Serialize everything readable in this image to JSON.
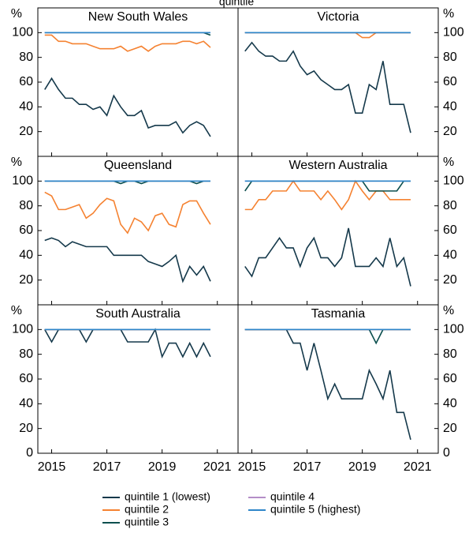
{
  "chart_data": {
    "type": "line",
    "title": "quintile",
    "ylabel": "%",
    "x": [
      2014.75,
      2015,
      2015.25,
      2015.5,
      2015.75,
      2016,
      2016.25,
      2016.5,
      2016.75,
      2017,
      2017.25,
      2017.5,
      2017.75,
      2018,
      2018.25,
      2018.5,
      2018.75,
      2019,
      2019.25,
      2019.5,
      2019.75,
      2020,
      2020.25,
      2020.5,
      2020.75
    ],
    "xlim": [
      2014.5,
      2021.75
    ],
    "xticks": [
      2015,
      2017,
      2019,
      2021
    ],
    "ylim": [
      0,
      120
    ],
    "series": [
      {
        "name": "quintile 1 (lowest)",
        "color": "#15394b"
      },
      {
        "name": "quintile 2",
        "color": "#f58231"
      },
      {
        "name": "quintile 3",
        "color": "#0b4f4e"
      },
      {
        "name": "quintile 4",
        "color": "#b48ec7"
      },
      {
        "name": "quintile 5 (highest)",
        "color": "#2e86c9"
      }
    ],
    "panels": [
      {
        "title": "New South Wales",
        "yticks": [
          20,
          40,
          60,
          80,
          100
        ],
        "series": [
          {
            "values": [
              54,
              63,
              54,
              47,
              47,
              42,
              42,
              38,
              40,
              33,
              49,
              40,
              33,
              33,
              37,
              23,
              25,
              25,
              25,
              28,
              19,
              25,
              28,
              25,
              16
            ]
          },
          {
            "values": [
              98,
              98,
              93,
              93,
              91,
              91,
              91,
              89,
              87,
              87,
              87,
              89,
              85,
              87,
              89,
              85,
              89,
              91,
              91,
              91,
              93,
              93,
              91,
              93,
              88
            ]
          },
          {
            "values": [
              100,
              100,
              100,
              100,
              100,
              100,
              100,
              100,
              100,
              100,
              100,
              100,
              100,
              100,
              100,
              100,
              100,
              100,
              100,
              100,
              100,
              100,
              100,
              100,
              98
            ]
          },
          {
            "values": [
              100,
              100,
              100,
              100,
              100,
              100,
              100,
              100,
              100,
              100,
              100,
              100,
              100,
              100,
              100,
              100,
              100,
              100,
              100,
              100,
              100,
              100,
              100,
              100,
              100
            ]
          },
          {
            "values": [
              100,
              100,
              100,
              100,
              100,
              100,
              100,
              100,
              100,
              100,
              100,
              100,
              100,
              100,
              100,
              100,
              100,
              100,
              100,
              100,
              100,
              100,
              100,
              100,
              100
            ]
          }
        ]
      },
      {
        "title": "Victoria",
        "yticks": [
          20,
          40,
          60,
          80,
          100
        ],
        "series": [
          {
            "values": [
              85,
              92,
              85,
              81,
              81,
              77,
              77,
              85,
              73,
              66,
              69,
              62,
              58,
              54,
              54,
              58,
              35,
              35,
              58,
              54,
              77,
              42,
              42,
              42,
              19
            ]
          },
          {
            "values": [
              100,
              100,
              100,
              100,
              100,
              100,
              100,
              100,
              100,
              100,
              100,
              100,
              100,
              100,
              100,
              100,
              100,
              96,
              96,
              100,
              100,
              100,
              100,
              100,
              100
            ]
          },
          {
            "values": [
              100,
              100,
              100,
              100,
              100,
              100,
              100,
              100,
              100,
              100,
              100,
              100,
              100,
              100,
              100,
              100,
              100,
              100,
              100,
              100,
              100,
              100,
              100,
              100,
              100
            ]
          },
          {
            "values": [
              100,
              100,
              100,
              100,
              100,
              100,
              100,
              100,
              100,
              100,
              100,
              100,
              100,
              100,
              100,
              100,
              100,
              100,
              100,
              100,
              100,
              100,
              100,
              100,
              100
            ]
          },
          {
            "values": [
              100,
              100,
              100,
              100,
              100,
              100,
              100,
              100,
              100,
              100,
              100,
              100,
              100,
              100,
              100,
              100,
              100,
              100,
              100,
              100,
              100,
              100,
              100,
              100,
              100
            ]
          }
        ]
      },
      {
        "title": "Queensland",
        "yticks": [
          20,
          40,
          60,
          80,
          100
        ],
        "series": [
          {
            "values": [
              52,
              54,
              52,
              47,
              51,
              49,
              47,
              47,
              47,
              47,
              40,
              40,
              40,
              40,
              40,
              35,
              33,
              31,
              35,
              40,
              19,
              31,
              24,
              31,
              19
            ]
          },
          {
            "values": [
              91,
              88,
              77,
              77,
              79,
              81,
              70,
              74,
              81,
              86,
              84,
              65,
              58,
              70,
              67,
              60,
              72,
              74,
              65,
              63,
              81,
              84,
              84,
              74,
              65
            ]
          },
          {
            "values": [
              100,
              100,
              100,
              100,
              100,
              100,
              100,
              100,
              100,
              100,
              100,
              98,
              100,
              100,
              98,
              100,
              100,
              100,
              100,
              100,
              100,
              100,
              98,
              100,
              100
            ]
          },
          {
            "values": [
              100,
              100,
              100,
              100,
              100,
              100,
              100,
              100,
              100,
              100,
              100,
              100,
              100,
              100,
              100,
              100,
              100,
              100,
              100,
              100,
              100,
              100,
              100,
              100,
              100
            ]
          },
          {
            "values": [
              100,
              100,
              100,
              100,
              100,
              100,
              100,
              100,
              100,
              100,
              100,
              100,
              100,
              100,
              100,
              100,
              100,
              100,
              100,
              100,
              100,
              100,
              100,
              100,
              100
            ]
          }
        ]
      },
      {
        "title": "Western Australia",
        "yticks": [
          20,
          40,
          60,
          80,
          100
        ],
        "series": [
          {
            "values": [
              31,
              23,
              38,
              38,
              46,
              54,
              46,
              46,
              31,
              46,
              54,
              38,
              38,
              31,
              38,
              62,
              31,
              31,
              31,
              38,
              31,
              54,
              31,
              38,
              15
            ]
          },
          {
            "values": [
              77,
              77,
              85,
              85,
              92,
              92,
              92,
              100,
              92,
              92,
              92,
              85,
              92,
              85,
              77,
              85,
              100,
              92,
              85,
              92,
              92,
              85,
              85,
              85,
              85
            ]
          },
          {
            "values": [
              92,
              100,
              100,
              100,
              100,
              100,
              100,
              100,
              100,
              100,
              100,
              100,
              100,
              100,
              100,
              100,
              100,
              100,
              92,
              92,
              92,
              92,
              92,
              100,
              100
            ]
          },
          {
            "values": [
              100,
              100,
              100,
              100,
              100,
              100,
              100,
              100,
              100,
              100,
              100,
              100,
              100,
              100,
              100,
              100,
              100,
              100,
              100,
              100,
              100,
              100,
              100,
              100,
              100
            ]
          },
          {
            "values": [
              100,
              100,
              100,
              100,
              100,
              100,
              100,
              100,
              100,
              100,
              100,
              100,
              100,
              100,
              100,
              100,
              100,
              100,
              100,
              100,
              100,
              100,
              100,
              100,
              100
            ]
          }
        ]
      },
      {
        "title": "South Australia",
        "yticks": [
          0,
          20,
          40,
          60,
          80,
          100
        ],
        "series": [
          {
            "values": [
              100,
              90,
              100,
              100,
              100,
              100,
              90,
              100,
              100,
              100,
              100,
              100,
              90,
              90,
              90,
              90,
              100,
              78,
              89,
              89,
              78,
              89,
              78,
              89,
              78
            ]
          },
          {
            "values": [
              100,
              100,
              100,
              100,
              100,
              100,
              100,
              100,
              100,
              100,
              100,
              100,
              100,
              100,
              100,
              100,
              100,
              100,
              100,
              100,
              100,
              100,
              100,
              100,
              100
            ]
          },
          {
            "values": [
              100,
              100,
              100,
              100,
              100,
              100,
              100,
              100,
              100,
              100,
              100,
              100,
              100,
              100,
              100,
              100,
              100,
              100,
              100,
              100,
              100,
              100,
              100,
              100,
              100
            ]
          },
          {
            "values": [
              100,
              100,
              100,
              100,
              100,
              100,
              100,
              100,
              100,
              100,
              100,
              100,
              100,
              100,
              100,
              100,
              100,
              100,
              100,
              100,
              100,
              100,
              100,
              100,
              100
            ]
          },
          {
            "values": [
              100,
              100,
              100,
              100,
              100,
              100,
              100,
              100,
              100,
              100,
              100,
              100,
              100,
              100,
              100,
              100,
              100,
              100,
              100,
              100,
              100,
              100,
              100,
              100,
              100
            ]
          }
        ]
      },
      {
        "title": "Tasmania",
        "yticks": [
          0,
          20,
          40,
          60,
          80,
          100
        ],
        "series": [
          {
            "values": [
              100,
              100,
              100,
              100,
              100,
              100,
              100,
              89,
              89,
              67,
              89,
              67,
              44,
              56,
              44,
              44,
              44,
              44,
              67,
              56,
              44,
              67,
              33,
              33,
              11
            ]
          },
          {
            "values": [
              100,
              100,
              100,
              100,
              100,
              100,
              100,
              100,
              100,
              100,
              100,
              100,
              100,
              100,
              100,
              100,
              100,
              100,
              100,
              100,
              100,
              100,
              100,
              100,
              100
            ]
          },
          {
            "values": [
              100,
              100,
              100,
              100,
              100,
              100,
              100,
              100,
              100,
              100,
              100,
              100,
              100,
              100,
              100,
              100,
              100,
              100,
              100,
              89,
              100,
              100,
              100,
              100,
              100
            ]
          },
          {
            "values": [
              100,
              100,
              100,
              100,
              100,
              100,
              100,
              100,
              100,
              100,
              100,
              100,
              100,
              100,
              100,
              100,
              100,
              100,
              100,
              100,
              100,
              100,
              100,
              100,
              100
            ]
          },
          {
            "values": [
              100,
              100,
              100,
              100,
              100,
              100,
              100,
              100,
              100,
              100,
              100,
              100,
              100,
              100,
              100,
              100,
              100,
              100,
              100,
              100,
              100,
              100,
              100,
              100,
              100
            ]
          }
        ]
      }
    ]
  }
}
